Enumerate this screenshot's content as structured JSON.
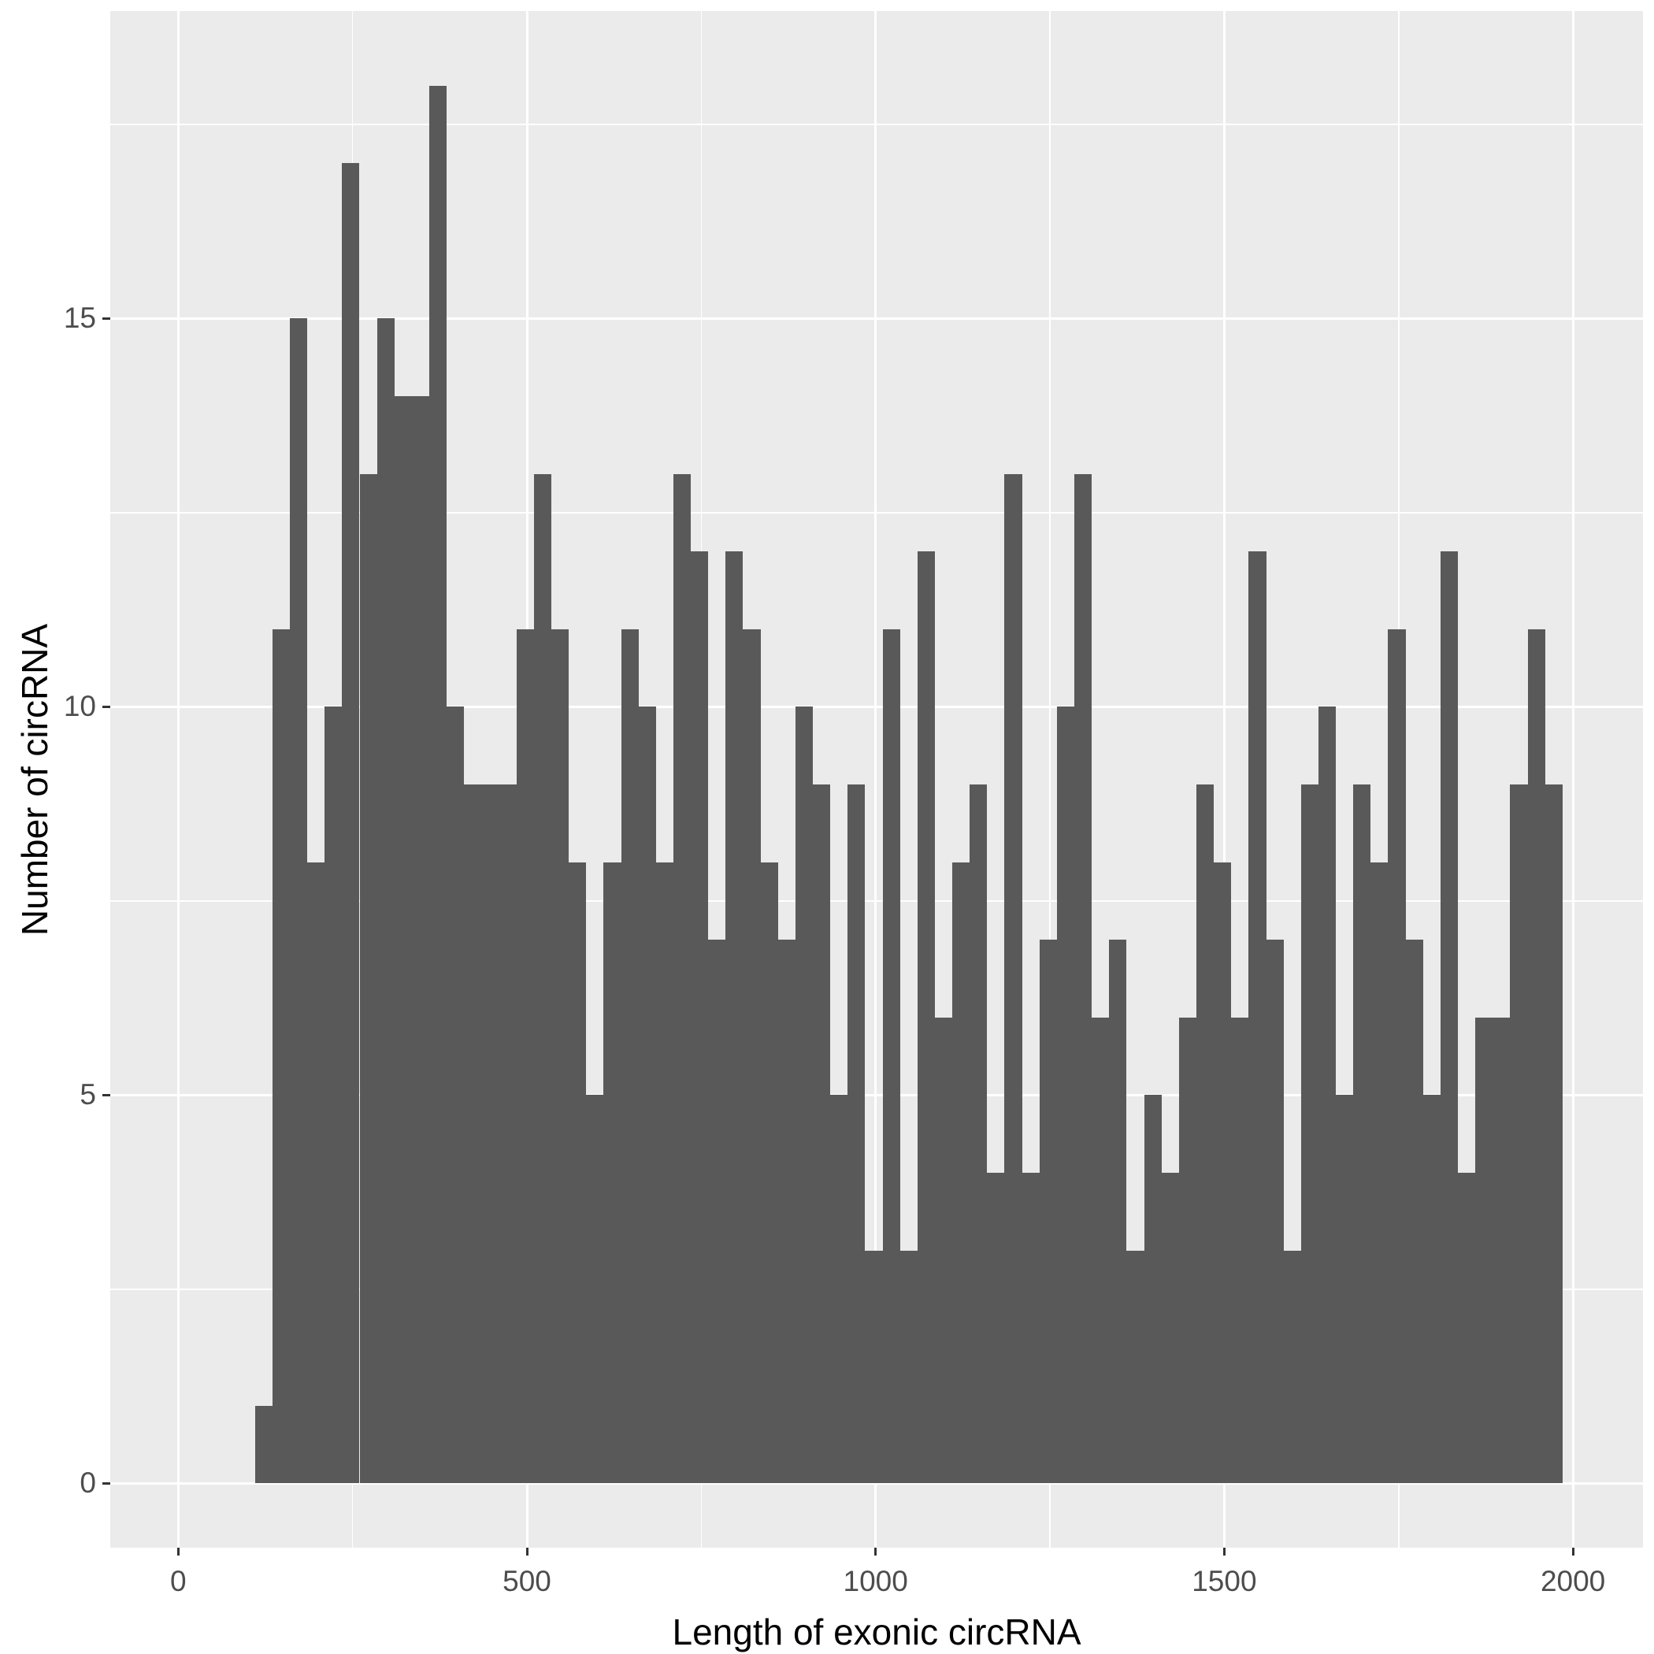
{
  "chart_data": {
    "type": "bar",
    "subtype": "histogram",
    "title": "",
    "xlabel": "Length of exonic circRNA",
    "ylabel": "Number of circRNA",
    "bin_start": 110,
    "bin_width": 25,
    "counts": [
      1,
      11,
      15,
      8,
      10,
      17,
      13,
      15,
      14,
      14,
      18,
      10,
      9,
      9,
      9,
      11,
      13,
      11,
      8,
      5,
      8,
      11,
      10,
      8,
      13,
      12,
      7,
      12,
      11,
      8,
      7,
      10,
      9,
      5,
      9,
      3,
      11,
      3,
      12,
      6,
      8,
      9,
      4,
      13,
      4,
      7,
      10,
      13,
      6,
      7,
      3,
      5,
      4,
      6,
      9,
      8,
      6,
      12,
      7,
      3,
      9,
      10,
      5,
      9,
      8,
      11,
      7,
      5,
      12,
      4,
      6,
      6,
      9,
      11,
      9
    ],
    "x_ticks": [
      0,
      500,
      1000,
      1500,
      2000
    ],
    "x_tick_labels": [
      "0",
      "500",
      "1000",
      "1500",
      "2000"
    ],
    "y_ticks": [
      0,
      5,
      10,
      15
    ],
    "y_tick_labels": [
      "0",
      "5",
      "10",
      "15"
    ],
    "y_minor_ticks": [
      2.5,
      7.5,
      12.5,
      17.5
    ],
    "x_minor_ticks": [
      250,
      750,
      1250,
      1750
    ],
    "xlim": [
      -97,
      2100
    ],
    "ylim": [
      -0.83,
      18.96
    ],
    "grid": "on",
    "legend": "none",
    "colors": {
      "bar_fill": "#595959",
      "panel_background": "#EBEBEB",
      "gridline": "#FFFFFF",
      "tick_label": "#4D4D4D",
      "axis_title": "#000000",
      "tick_mark": "#333333",
      "page_background": "#FFFFFF"
    }
  }
}
